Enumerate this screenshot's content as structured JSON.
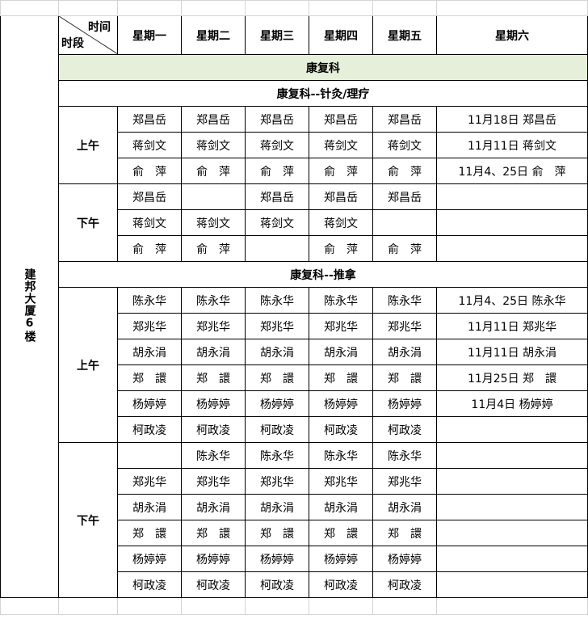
{
  "header": {
    "corner_top": "时间",
    "corner_bottom": "时段",
    "days": [
      "星期一",
      "星期二",
      "星期三",
      "星期四",
      "星期五",
      "星期六"
    ]
  },
  "building": "建邦大厦6楼",
  "department": "康复科",
  "sections": [
    {
      "title": "康复科--针灸/理疗",
      "periods": [
        {
          "label": "上午",
          "rows": [
            [
              "郑昌岳",
              "郑昌岳",
              "郑昌岳",
              "郑昌岳",
              "郑昌岳",
              "11月18日  郑昌岳"
            ],
            [
              "蒋剑文",
              "蒋剑文",
              "蒋剑文",
              "蒋剑文",
              "蒋剑文",
              "11月11日  蒋剑文"
            ],
            [
              "俞　萍",
              "俞　萍",
              "俞　萍",
              "俞　萍",
              "俞　萍",
              "11月4、25日 俞　萍"
            ]
          ]
        },
        {
          "label": "下午",
          "rows": [
            [
              "郑昌岳",
              "",
              "郑昌岳",
              "郑昌岳",
              "郑昌岳",
              ""
            ],
            [
              "蒋剑文",
              "蒋剑文",
              "蒋剑文",
              "蒋剑文",
              "",
              ""
            ],
            [
              "俞　萍",
              "俞　萍",
              "",
              "俞　萍",
              "俞　萍",
              ""
            ]
          ]
        }
      ]
    },
    {
      "title": "康复科--推拿",
      "periods": [
        {
          "label": "上午",
          "rows": [
            [
              "陈永华",
              "陈永华",
              "陈永华",
              "陈永华",
              "陈永华",
              "11月4、25日  陈永华"
            ],
            [
              "郑兆华",
              "郑兆华",
              "郑兆华",
              "郑兆华",
              "郑兆华",
              "11月11日  郑兆华"
            ],
            [
              "胡永涓",
              "胡永涓",
              "胡永涓",
              "胡永涓",
              "胡永涓",
              "11月11日  胡永涓"
            ],
            [
              "郑　譞",
              "郑　譞",
              "郑　譞",
              "郑　譞",
              "郑　譞",
              "11月25日  郑　譞"
            ],
            [
              "杨婷婷",
              "杨婷婷",
              "杨婷婷",
              "杨婷婷",
              "杨婷婷",
              "11月4日  杨婷婷"
            ],
            [
              "柯政凌",
              "柯政凌",
              "柯政凌",
              "柯政凌",
              "柯政凌",
              ""
            ]
          ]
        },
        {
          "label": "下午",
          "rows": [
            [
              "",
              "陈永华",
              "陈永华",
              "陈永华",
              "陈永华",
              ""
            ],
            [
              "郑兆华",
              "郑兆华",
              "郑兆华",
              "郑兆华",
              "郑兆华",
              ""
            ],
            [
              "胡永涓",
              "胡永涓",
              "胡永涓",
              "胡永涓",
              "胡永涓",
              ""
            ],
            [
              "郑　譞",
              "郑　譞",
              "郑　譞",
              "郑　譞",
              "郑　譞",
              ""
            ],
            [
              "杨婷婷",
              "杨婷婷",
              "杨婷婷",
              "杨婷婷",
              "杨婷婷",
              ""
            ],
            [
              "柯政凌",
              "柯政凌",
              "柯政凌",
              "柯政凌",
              "柯政凌",
              ""
            ]
          ]
        }
      ]
    }
  ]
}
